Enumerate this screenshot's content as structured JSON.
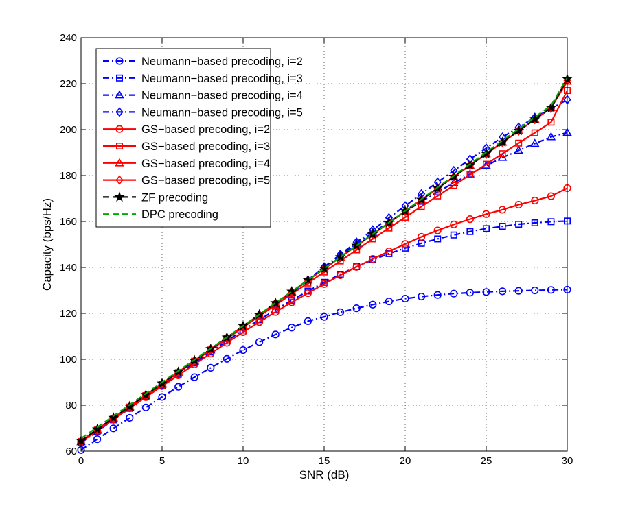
{
  "chart_data": {
    "type": "line",
    "title": "",
    "xlabel": "SNR (dB)",
    "ylabel": "Capacity (bps/Hz)",
    "xlim": [
      0,
      30
    ],
    "ylim": [
      60,
      240
    ],
    "xticks": [
      0,
      5,
      10,
      15,
      20,
      25,
      30
    ],
    "yticks": [
      60,
      80,
      100,
      120,
      140,
      160,
      180,
      200,
      220,
      240
    ],
    "grid": true,
    "legend_position": "top-left",
    "x": [
      0,
      1,
      2,
      3,
      4,
      5,
      6,
      7,
      8,
      9,
      10,
      11,
      12,
      13,
      14,
      15,
      16,
      17,
      18,
      19,
      20,
      21,
      22,
      23,
      24,
      25,
      26,
      27,
      28,
      29,
      30
    ],
    "series": [
      {
        "name": "Neumann−based precoding, i=2",
        "color": "#0000ff",
        "dash": "dashdot",
        "marker": "circle",
        "values": [
          60.5,
          65.2,
          69.9,
          74.5,
          79,
          83.6,
          88,
          92.2,
          96.3,
          100.2,
          104,
          107.5,
          110.8,
          113.8,
          116.6,
          118.5,
          120.5,
          122.2,
          123.8,
          125.2,
          126.4,
          127.3,
          128.0,
          128.6,
          129.0,
          129.3,
          129.6,
          129.8,
          130.0,
          130.2,
          130.3
        ]
      },
      {
        "name": "Neumann−based precoding, i=3",
        "color": "#0000ff",
        "dash": "dashdot",
        "marker": "square",
        "values": [
          63.6,
          68.6,
          73.6,
          78.6,
          83.6,
          88.6,
          93.5,
          98.4,
          103.2,
          108,
          112.7,
          117.2,
          121.5,
          125.7,
          129.7,
          133.5,
          137,
          140.3,
          143.3,
          146,
          148.4,
          150.5,
          152.4,
          154.1,
          155.6,
          156.9,
          157.9,
          158.8,
          159.4,
          159.9,
          160.2
        ]
      },
      {
        "name": "Neumann−based precoding, i=4",
        "color": "#0000ff",
        "dash": "dashdot",
        "marker": "triangle",
        "values": [
          64,
          69,
          74,
          79,
          84,
          89,
          94,
          99,
          104,
          109,
          114,
          119,
          124,
          129,
          134.5,
          140.2,
          145.2,
          150.3,
          155.1,
          159.8,
          164.3,
          168.7,
          172.8,
          176.8,
          180.6,
          184.3,
          187.8,
          190.9,
          193.9,
          196.8,
          198.7
        ]
      },
      {
        "name": "Neumann−based precoding, i=5",
        "color": "#0000ff",
        "dash": "dashdot",
        "marker": "diamond",
        "values": [
          64,
          69,
          74,
          79,
          84,
          89,
          94,
          99,
          104,
          109,
          114,
          119,
          124,
          129,
          134.5,
          140.2,
          145.7,
          151,
          156.3,
          161.6,
          166.8,
          172,
          177.1,
          182.1,
          187.1,
          191.9,
          196.7,
          201,
          205.3,
          209.2,
          213
        ]
      },
      {
        "name": "GS−based precoding, i=2",
        "color": "#ff0000",
        "dash": "solid",
        "marker": "circle",
        "values": [
          64,
          68.9,
          73.8,
          78.7,
          83.5,
          88.3,
          93,
          97.8,
          102.5,
          107.2,
          111.8,
          116.2,
          120.6,
          124.8,
          128.8,
          132.8,
          136.6,
          140.2,
          143.7,
          147,
          150.2,
          153.3,
          156.1,
          158.7,
          161,
          163.2,
          165.1,
          167.3,
          169.1,
          171,
          174.5
        ]
      },
      {
        "name": "GS−based precoding, i=3",
        "color": "#ff0000",
        "dash": "solid",
        "marker": "square",
        "values": [
          64.2,
          69.2,
          74.2,
          79.2,
          84.2,
          89.2,
          94.2,
          99.2,
          104.1,
          109,
          113.9,
          118.8,
          123.6,
          128.4,
          133.2,
          138,
          142.8,
          147.6,
          152.4,
          157.1,
          161.8,
          166.5,
          171.1,
          175.7,
          180.3,
          184.9,
          189.5,
          194.1,
          198.6,
          203.2,
          217
        ]
      },
      {
        "name": "GS−based precoding, i=4",
        "color": "#ff0000",
        "dash": "solid",
        "marker": "triangle",
        "values": [
          64.4,
          69.4,
          74.4,
          79.4,
          84.4,
          89.4,
          94.4,
          99.4,
          104.4,
          109.4,
          114.4,
          119.4,
          124.4,
          129.4,
          134.4,
          139.4,
          144.4,
          149.4,
          154.4,
          159.4,
          164.4,
          169.4,
          174.4,
          179.4,
          184.4,
          189.4,
          194.4,
          199.4,
          204.4,
          209.4,
          221
        ]
      },
      {
        "name": "GS−based precoding, i=5",
        "color": "#ff0000",
        "dash": "solid",
        "marker": "diamond",
        "values": [
          64.4,
          69.4,
          74.4,
          79.4,
          84.4,
          89.4,
          94.4,
          99.4,
          104.4,
          109.4,
          114.4,
          119.4,
          124.4,
          129.4,
          134.4,
          139.4,
          144.4,
          149.4,
          154.4,
          159.4,
          164.4,
          169.4,
          174.4,
          179.4,
          184.4,
          189.4,
          194.4,
          199.4,
          204.4,
          209.4,
          221.5
        ]
      },
      {
        "name": "ZF precoding",
        "color": "#000000",
        "dash": "dashed",
        "marker": "star",
        "values": [
          64.5,
          69.5,
          74.5,
          79.5,
          84.5,
          89.5,
          94.5,
          99.5,
          104.5,
          109.5,
          114.5,
          119.5,
          124.5,
          129.5,
          134.5,
          139.5,
          144.5,
          149.5,
          154.5,
          159.5,
          164.5,
          169.5,
          174.5,
          179.5,
          184.5,
          189.5,
          194.5,
          199.5,
          204.5,
          209.5,
          222
        ]
      },
      {
        "name": "DPC precoding",
        "color": "#00aa00",
        "dash": "dashed",
        "marker": "none",
        "values": [
          65.5,
          70.4,
          75.3,
          80.2,
          85.1,
          90,
          94.9,
          99.8,
          104.7,
          109.6,
          114.5,
          119.5,
          124.5,
          129.5,
          134.5,
          139.5,
          144.5,
          149.5,
          154.5,
          159.5,
          164.6,
          169.7,
          174.8,
          179.9,
          185,
          190.1,
          195.2,
          200.3,
          205.4,
          210.5,
          222.5
        ]
      }
    ]
  }
}
